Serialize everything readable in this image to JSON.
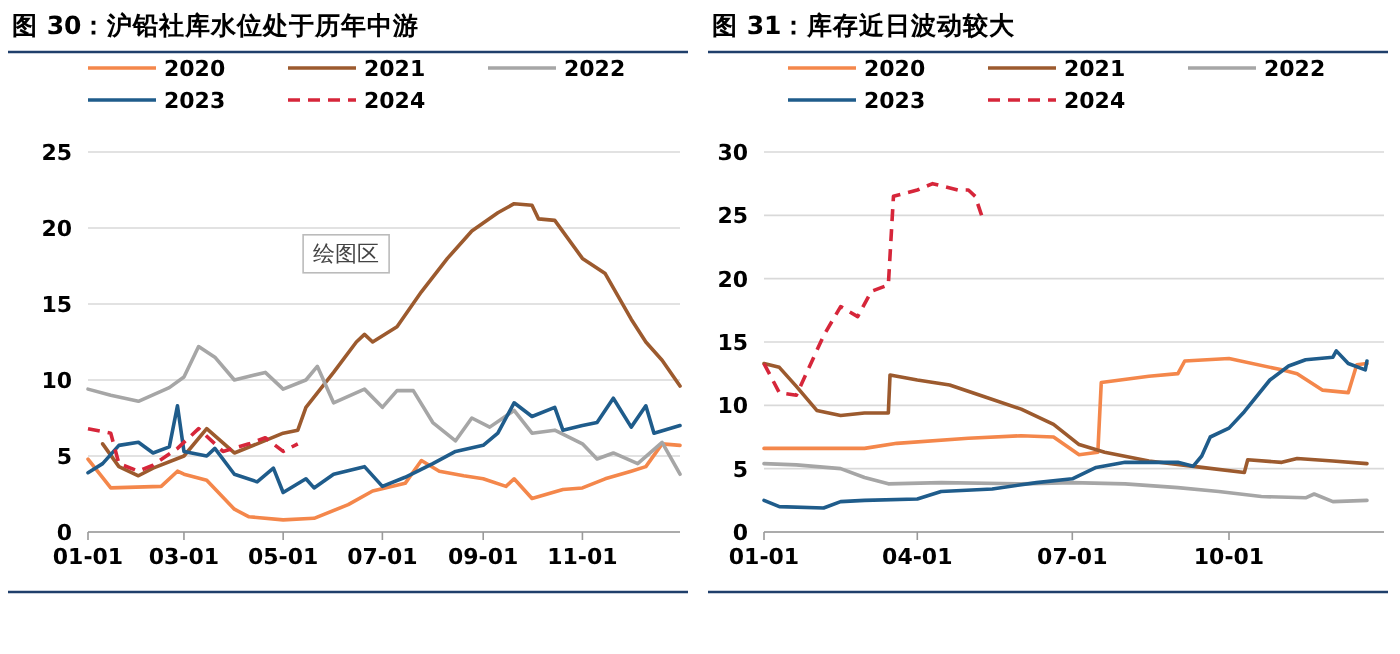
{
  "chart_data": [
    {
      "type": "line",
      "title": "图 30：沪铅社库水位处于历年中游",
      "annotations": [
        "绘图区"
      ],
      "xlim": [
        "--01-01",
        "--12-31"
      ],
      "xticks": [
        {
          "value": "--01-01",
          "label": "01-01"
        },
        {
          "value": "--03-01",
          "label": "03-01"
        },
        {
          "value": "--05-01",
          "label": "05-01"
        },
        {
          "value": "--07-01",
          "label": "07-01"
        },
        {
          "value": "--09-01",
          "label": "09-01"
        },
        {
          "value": "--11-01",
          "label": "11-01"
        }
      ],
      "ylim": [
        0,
        25
      ],
      "yticks": [
        0,
        5,
        10,
        15,
        20,
        25
      ],
      "grid": "y",
      "legend": "top",
      "marker": "none",
      "series": [
        {
          "name": "2020",
          "color": "#f4874b",
          "x": [
            "--01-01",
            "--01-15",
            "--02-15",
            "--02-25",
            "--03-01",
            "--03-15",
            "--04-01",
            "--04-10",
            "--05-01",
            "--05-20",
            "--06-10",
            "--06-25",
            "--07-15",
            "--07-25",
            "--08-05",
            "--08-20",
            "--09-01",
            "--09-15",
            "--09-20",
            "--10-01",
            "--10-20",
            "--11-01",
            "--11-15",
            "--12-01",
            "--12-10",
            "--12-20",
            "--12-31"
          ],
          "values": [
            4.8,
            2.9,
            3.0,
            4.0,
            3.8,
            3.4,
            1.5,
            1.0,
            0.8,
            0.9,
            1.8,
            2.7,
            3.2,
            4.7,
            4.0,
            3.7,
            3.5,
            3.0,
            3.5,
            2.2,
            2.8,
            2.9,
            3.5,
            4.0,
            4.3,
            5.8,
            5.7
          ]
        },
        {
          "name": "2021",
          "color": "#9c5a2e",
          "x": [
            "--01-10",
            "--01-20",
            "--02-01",
            "--02-10",
            "--03-01",
            "--03-15",
            "--04-01",
            "--04-15",
            "--05-01",
            "--05-10",
            "--05-15",
            "--06-01",
            "--06-15",
            "--06-20",
            "--06-25",
            "--07-10",
            "--07-25",
            "--08-10",
            "--08-25",
            "--09-10",
            "--09-20",
            "--10-01",
            "--10-05",
            "--10-15",
            "--11-01",
            "--11-15",
            "--12-01",
            "--12-10",
            "--12-20",
            "--12-31"
          ],
          "values": [
            5.8,
            4.3,
            3.7,
            4.2,
            5.0,
            6.8,
            5.2,
            5.8,
            6.5,
            6.7,
            8.2,
            10.5,
            12.5,
            13.0,
            12.5,
            13.5,
            15.8,
            18.0,
            19.8,
            21.0,
            21.6,
            21.5,
            20.6,
            20.5,
            18.0,
            17.0,
            14.0,
            12.5,
            11.3,
            9.6
          ]
        },
        {
          "name": "2022",
          "color": "#a6a6a6",
          "x": [
            "--01-01",
            "--01-15",
            "--02-01",
            "--02-20",
            "--03-01",
            "--03-10",
            "--03-20",
            "--04-01",
            "--04-20",
            "--05-01",
            "--05-15",
            "--05-22",
            "--06-01",
            "--06-20",
            "--07-01",
            "--07-10",
            "--07-20",
            "--08-01",
            "--08-15",
            "--08-25",
            "--09-05",
            "--09-20",
            "--10-01",
            "--10-15",
            "--11-01",
            "--11-10",
            "--11-20",
            "--12-05",
            "--12-20",
            "--12-31"
          ],
          "values": [
            9.4,
            9.0,
            8.6,
            9.5,
            10.2,
            12.2,
            11.5,
            10.0,
            10.5,
            9.4,
            10.0,
            10.9,
            8.5,
            9.4,
            8.2,
            9.3,
            9.3,
            7.2,
            6.0,
            7.5,
            6.9,
            8.0,
            6.5,
            6.7,
            5.8,
            4.8,
            5.2,
            4.5,
            5.9,
            3.8
          ]
        },
        {
          "name": "2023",
          "color": "#1f5c8b",
          "x": [
            "--01-01",
            "--01-10",
            "--01-20",
            "--02-01",
            "--02-10",
            "--02-20",
            "--02-25",
            "--03-01",
            "--03-15",
            "--03-20",
            "--04-01",
            "--04-15",
            "--04-25",
            "--05-01",
            "--05-15",
            "--05-20",
            "--06-01",
            "--06-20",
            "--07-01",
            "--07-15",
            "--08-01",
            "--08-15",
            "--09-01",
            "--09-10",
            "--09-20",
            "--10-01",
            "--10-15",
            "--10-20",
            "--11-01",
            "--11-10",
            "--11-20",
            "--12-01",
            "--12-10",
            "--12-15",
            "--12-31"
          ],
          "values": [
            3.9,
            4.5,
            5.7,
            5.9,
            5.2,
            5.6,
            8.3,
            5.3,
            5.0,
            5.5,
            3.8,
            3.3,
            4.2,
            2.6,
            3.5,
            2.9,
            3.8,
            4.3,
            3.0,
            3.6,
            4.5,
            5.3,
            5.7,
            6.5,
            8.5,
            7.6,
            8.2,
            6.7,
            7.0,
            7.2,
            8.8,
            6.9,
            8.3,
            6.5,
            7.0
          ]
        },
        {
          "name": "2024",
          "color": "#d6263a",
          "line_style": "dashed",
          "x": [
            "--01-01",
            "--01-15",
            "--01-20",
            "--02-01",
            "--02-10",
            "--02-25",
            "--03-10",
            "--03-25",
            "--04-10",
            "--04-20",
            "--05-01",
            "--05-10"
          ],
          "values": [
            6.8,
            6.5,
            4.5,
            4.0,
            4.4,
            5.5,
            6.8,
            5.3,
            5.8,
            6.2,
            5.3,
            5.8
          ]
        }
      ]
    },
    {
      "type": "line",
      "title": "图 31：库存近日波动较大",
      "xlim": [
        "--01-01",
        "--12-31"
      ],
      "xticks": [
        {
          "value": "--01-01",
          "label": "01-01"
        },
        {
          "value": "--04-01",
          "label": "04-01"
        },
        {
          "value": "--07-01",
          "label": "07-01"
        },
        {
          "value": "--10-01",
          "label": "10-01"
        }
      ],
      "ylim": [
        0,
        30
      ],
      "yticks": [
        0,
        5,
        10,
        15,
        20,
        25,
        30
      ],
      "grid": "y",
      "legend": "top",
      "marker": "none",
      "series": [
        {
          "name": "2020",
          "color": "#f4874b",
          "x": [
            "--01-01",
            "--03-01",
            "--03-20",
            "--05-01",
            "--06-01",
            "--06-20",
            "--07-05",
            "--07-16",
            "--07-18",
            "--08-15",
            "--09-01",
            "--09-05",
            "--10-01",
            "--11-01",
            "--11-10",
            "--11-25",
            "--12-10",
            "--12-15",
            "--12-21"
          ],
          "values": [
            6.6,
            6.6,
            7.0,
            7.4,
            7.6,
            7.5,
            6.1,
            6.3,
            11.8,
            12.3,
            12.5,
            13.5,
            13.7,
            12.8,
            12.5,
            11.2,
            11.0,
            13.2,
            13.3
          ]
        },
        {
          "name": "2021",
          "color": "#9c5a2e",
          "x": [
            "--01-01",
            "--01-10",
            "--01-20",
            "--02-01",
            "--02-15",
            "--03-01",
            "--03-15",
            "--03-16",
            "--04-01",
            "--04-20",
            "--05-10",
            "--06-01",
            "--06-20",
            "--07-05",
            "--07-20",
            "--08-15",
            "--09-15",
            "--10-10",
            "--10-12",
            "--11-01",
            "--11-10",
            "--12-01",
            "--12-21"
          ],
          "values": [
            13.3,
            13.0,
            11.5,
            9.6,
            9.2,
            9.4,
            9.4,
            12.4,
            12.0,
            11.6,
            10.7,
            9.7,
            8.5,
            6.9,
            6.3,
            5.6,
            5.1,
            4.7,
            5.7,
            5.5,
            5.8,
            5.6,
            5.4
          ]
        },
        {
          "name": "2022",
          "color": "#a6a6a6",
          "x": [
            "--01-01",
            "--01-20",
            "--02-15",
            "--03-01",
            "--03-15",
            "--04-15",
            "--06-01",
            "--07-01",
            "--08-01",
            "--09-01",
            "--09-25",
            "--10-20",
            "--11-15",
            "--11-20",
            "--12-01",
            "--12-21"
          ],
          "values": [
            5.4,
            5.3,
            5.0,
            4.3,
            3.8,
            3.9,
            3.8,
            3.9,
            3.8,
            3.5,
            3.2,
            2.8,
            2.7,
            3.0,
            2.4,
            2.5
          ]
        },
        {
          "name": "2023",
          "color": "#1f5c8b",
          "x": [
            "--01-01",
            "--01-10",
            "--02-05",
            "--02-15",
            "--03-01",
            "--04-01",
            "--04-15",
            "--05-15",
            "--06-10",
            "--07-01",
            "--07-15",
            "--08-01",
            "--08-15",
            "--09-01",
            "--09-10",
            "--09-15",
            "--09-20",
            "--10-01",
            "--10-10",
            "--10-25",
            "--11-05",
            "--11-15",
            "--12-01",
            "--12-03",
            "--12-10",
            "--12-20",
            "--12-21"
          ],
          "values": [
            2.5,
            2.0,
            1.9,
            2.4,
            2.5,
            2.6,
            3.2,
            3.4,
            3.9,
            4.2,
            5.1,
            5.5,
            5.5,
            5.5,
            5.2,
            6.0,
            7.5,
            8.2,
            9.5,
            12.0,
            13.1,
            13.6,
            13.8,
            14.3,
            13.3,
            12.8,
            13.5
          ]
        },
        {
          "name": "2024",
          "color": "#d6263a",
          "line_style": "dashed",
          "x": [
            "--01-01",
            "--01-10",
            "--01-20",
            "--02-05",
            "--02-15",
            "--02-25",
            "--03-05",
            "--03-15",
            "--03-18",
            "--04-01",
            "--04-10",
            "--04-25",
            "--05-01",
            "--05-05",
            "--05-10"
          ],
          "values": [
            13.3,
            11.0,
            10.8,
            15.5,
            17.8,
            17.0,
            19.0,
            19.5,
            26.5,
            27.0,
            27.5,
            27.0,
            27.0,
            26.5,
            24.5
          ]
        }
      ]
    }
  ]
}
